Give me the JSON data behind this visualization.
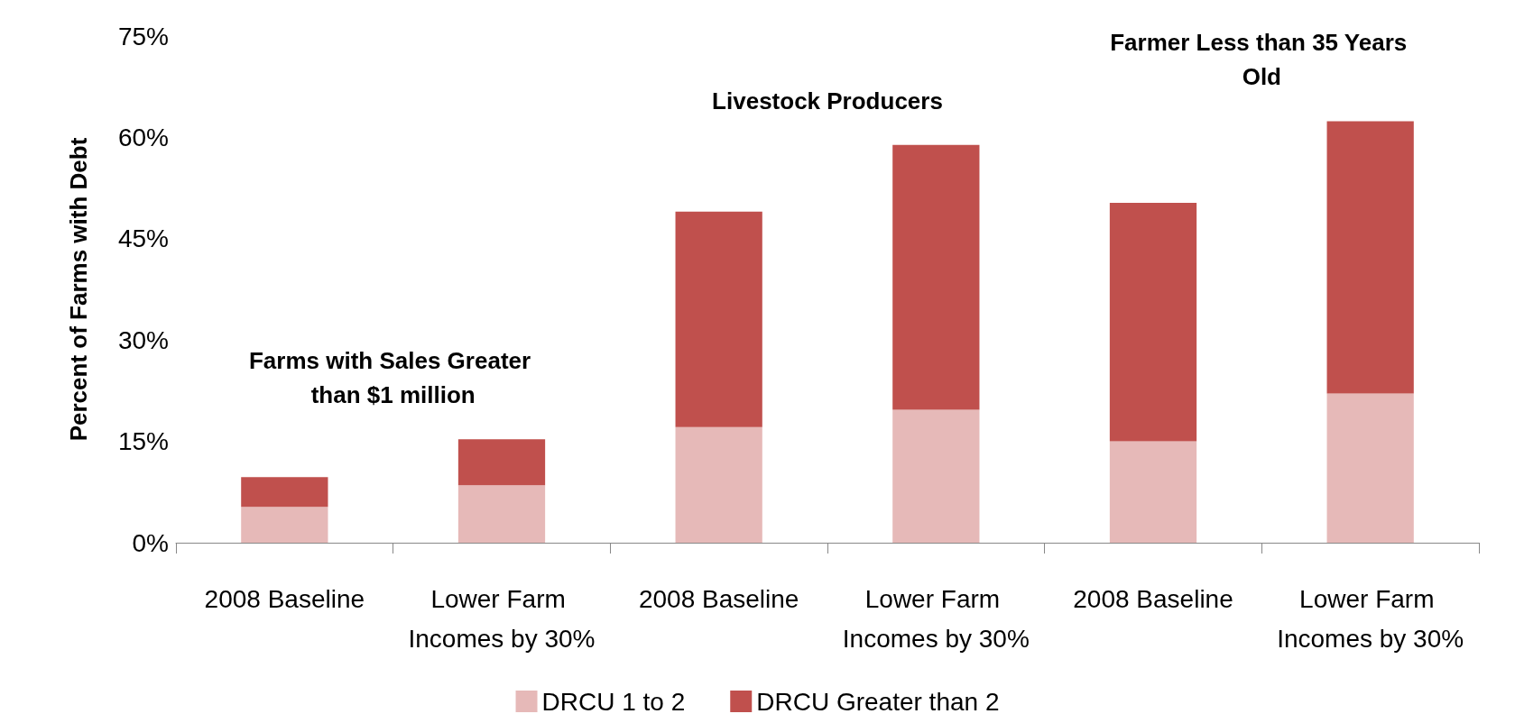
{
  "chart_data": {
    "type": "bar",
    "stacked": true,
    "ylabel": "Percent of Farms with Debt",
    "categories": [
      "2008 Baseline",
      "Lower Farm Incomes by 30%",
      "2008 Baseline",
      "Lower Farm Incomes by 30%",
      "2008 Baseline",
      "Lower Farm Incomes by 30%"
    ],
    "series": [
      {
        "name": "DRCU 1 to 2",
        "color": "#e6b9b8",
        "values": [
          5.3,
          8.5,
          17.1,
          19.7,
          15.0,
          22.1
        ]
      },
      {
        "name": "DRCU Greater than 2",
        "color": "#c0504d",
        "values": [
          4.4,
          6.8,
          31.9,
          39.2,
          35.3,
          40.3
        ]
      }
    ],
    "ylim": [
      0,
      75
    ],
    "yticks": [
      {
        "value": 0,
        "label": "0%"
      },
      {
        "value": 15,
        "label": "15%"
      },
      {
        "value": 30,
        "label": "30%"
      },
      {
        "value": 45,
        "label": "45%"
      },
      {
        "value": 60,
        "label": "60%"
      },
      {
        "value": 75,
        "label": "75%"
      }
    ],
    "annotations": [
      "Farms with Sales Greater than $1 million",
      "Livestock Producers",
      "Farmer Less than 35 Years Old"
    ],
    "grid": false,
    "legend": "bottom"
  }
}
